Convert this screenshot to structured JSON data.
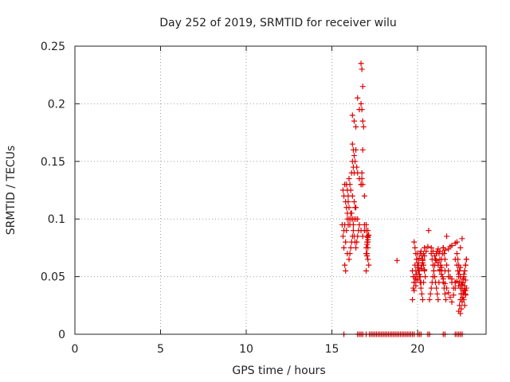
{
  "chart_data": {
    "type": "scatter",
    "title": "Day 252 of 2019, SRMTID for receiver wilu",
    "xlabel": "GPS time / hours",
    "ylabel": "SRMTID / TECUs",
    "xlim": [
      0,
      24
    ],
    "ylim": [
      0,
      0.25
    ],
    "xticks": [
      0,
      5,
      10,
      15,
      20
    ],
    "yticks": [
      0,
      0.05,
      0.1,
      0.15,
      0.2,
      0.25
    ],
    "ytick_labels": [
      "0",
      "0.05",
      "0.1",
      "0.15",
      "0.2",
      "0.25"
    ],
    "grid": true,
    "marker": "+",
    "color": "#e00000",
    "series": [
      {
        "x": [
          15.6,
          15.65,
          15.7,
          15.75,
          15.7,
          15.8,
          15.85,
          15.9,
          15.95,
          16.0,
          16.05,
          16.1,
          16.15,
          16.2,
          16.25,
          16.3,
          16.35,
          16.4,
          15.65,
          15.7,
          15.75,
          15.8,
          15.85,
          15.9,
          15.95,
          16.0,
          16.05,
          16.1,
          16.15,
          16.2,
          16.3,
          16.4,
          16.5,
          16.6,
          16.7,
          16.8,
          16.9,
          17.0,
          17.1,
          16.2,
          16.25,
          16.3,
          16.35,
          16.2,
          16.25,
          16.3,
          16.4,
          16.45,
          16.5,
          16.6,
          16.7,
          16.75,
          16.8,
          16.9,
          15.9,
          16.0,
          16.05,
          16.1,
          16.15,
          16.2,
          16.25,
          16.3,
          16.35,
          16.4,
          16.45,
          16.5,
          16.55,
          16.7,
          16.75,
          16.8,
          16.7,
          16.75,
          16.8,
          16.85,
          16.8,
          16.75,
          16.7,
          15.75,
          15.8,
          15.85,
          15.9,
          15.95,
          16.0,
          16.1,
          16.2,
          16.3,
          16.4,
          16.5,
          16.6,
          16.9,
          17.0,
          17.05,
          17.1,
          17.0,
          17.05,
          17.1,
          17.15,
          17.0,
          17.05,
          17.1,
          17.05,
          17.1,
          17.0,
          17.05,
          17.1,
          17.15,
          17.1,
          17.05,
          18.8,
          19.7,
          19.75,
          19.8,
          19.85,
          19.9,
          19.95,
          20.0,
          20.05,
          20.1,
          20.15,
          20.2,
          20.25,
          20.3,
          20.35,
          20.4,
          19.75,
          19.8,
          19.85,
          19.9,
          19.95,
          20.0,
          20.05,
          20.1,
          20.15,
          20.2,
          20.25,
          20.3,
          20.35,
          20.4,
          20.45,
          19.8,
          19.85,
          19.9,
          19.95,
          20.0,
          20.05,
          20.1,
          20.15,
          20.2,
          20.25,
          20.3,
          20.35,
          20.4,
          19.7,
          19.8,
          19.9,
          20.0,
          20.1,
          20.2,
          20.3,
          20.4,
          20.5,
          20.6,
          20.7,
          20.75,
          20.8,
          20.85,
          20.9,
          20.95,
          21.0,
          21.05,
          21.1,
          21.15,
          21.2,
          21.25,
          21.3,
          21.35,
          21.4,
          21.45,
          21.5,
          21.55,
          21.6,
          21.65,
          20.8,
          20.85,
          20.9,
          20.95,
          21.0,
          21.05,
          21.1,
          21.15,
          21.2,
          21.25,
          21.3,
          21.35,
          21.4,
          21.45,
          21.5,
          21.55,
          21.6,
          21.7,
          21.8,
          21.9,
          22.0,
          22.1,
          22.2,
          20.8,
          20.9,
          21.0,
          21.1,
          21.2,
          21.3,
          21.4,
          21.5,
          21.6,
          21.7,
          21.8,
          21.9,
          22.0,
          22.1,
          22.2,
          22.3,
          22.4,
          22.5,
          21.0,
          21.2,
          21.4,
          21.6,
          21.8,
          22.0,
          22.2,
          22.4,
          22.6,
          22.8,
          20.65,
          21.7,
          22.3,
          22.6,
          22.5,
          22.2,
          22.3,
          22.35,
          22.4,
          22.45,
          22.5,
          22.55,
          22.6,
          22.65,
          22.7,
          22.75,
          22.8,
          22.85,
          22.3,
          22.35,
          22.4,
          22.45,
          22.5,
          22.55,
          22.6,
          22.65,
          22.7,
          22.75,
          22.8,
          22.85,
          22.4,
          22.45,
          22.5,
          22.55,
          22.6,
          22.65,
          22.7,
          22.75,
          22.8,
          22.85,
          22.5,
          22.55,
          22.6,
          22.65,
          22.7,
          22.75,
          22.8,
          22.6,
          22.65,
          22.7,
          22.75,
          22.8,
          21.3,
          21.5,
          21.8,
          22.0,
          22.2,
          21.9,
          21.6,
          15.7,
          16.5,
          16.6,
          16.7,
          16.8,
          17.0,
          17.2,
          17.3,
          17.4,
          17.5,
          17.6,
          17.7,
          17.8,
          17.9,
          18.0,
          18.1,
          18.2,
          18.3,
          18.4,
          18.5,
          18.6,
          18.7,
          18.8,
          18.9,
          19.0,
          19.1,
          19.2,
          19.3,
          19.4,
          19.5,
          19.6,
          19.7,
          19.8,
          20.0,
          20.1,
          20.2,
          20.6,
          20.7,
          21.5,
          21.6,
          22.2,
          22.3,
          22.4,
          22.5,
          22.6
        ],
        "y": [
          0.095,
          0.085,
          0.09,
          0.095,
          0.075,
          0.08,
          0.09,
          0.1,
          0.095,
          0.1,
          0.095,
          0.1,
          0.105,
          0.1,
          0.095,
          0.1,
          0.11,
          0.1,
          0.125,
          0.12,
          0.13,
          0.115,
          0.13,
          0.125,
          0.12,
          0.135,
          0.13,
          0.125,
          0.14,
          0.12,
          0.115,
          0.11,
          0.1,
          0.095,
          0.09,
          0.085,
          0.09,
          0.095,
          0.085,
          0.15,
          0.145,
          0.14,
          0.15,
          0.165,
          0.16,
          0.155,
          0.16,
          0.145,
          0.14,
          0.135,
          0.13,
          0.14,
          0.13,
          0.12,
          0.07,
          0.065,
          0.07,
          0.075,
          0.08,
          0.085,
          0.09,
          0.085,
          0.08,
          0.075,
          0.08,
          0.085,
          0.09,
          0.235,
          0.23,
          0.215,
          0.2,
          0.195,
          0.185,
          0.18,
          0.16,
          0.135,
          0.13,
          0.06,
          0.055,
          0.11,
          0.105,
          0.115,
          0.11,
          0.105,
          0.19,
          0.185,
          0.18,
          0.205,
          0.195,
          0.095,
          0.09,
          0.085,
          0.08,
          0.075,
          0.07,
          0.065,
          0.06,
          0.055,
          0.085,
          0.09,
          0.08,
          0.075,
          0.07,
          0.068,
          0.082,
          0.086,
          0.084,
          0.078,
          0.064,
          0.055,
          0.05,
          0.045,
          0.06,
          0.055,
          0.065,
          0.07,
          0.06,
          0.055,
          0.05,
          0.045,
          0.06,
          0.065,
          0.07,
          0.075,
          0.04,
          0.045,
          0.05,
          0.048,
          0.052,
          0.058,
          0.062,
          0.066,
          0.07,
          0.072,
          0.068,
          0.064,
          0.06,
          0.056,
          0.05,
          0.08,
          0.075,
          0.07,
          0.065,
          0.06,
          0.055,
          0.05,
          0.045,
          0.04,
          0.035,
          0.03,
          0.045,
          0.055,
          0.03,
          0.038,
          0.042,
          0.047,
          0.052,
          0.057,
          0.062,
          0.068,
          0.072,
          0.076,
          0.03,
          0.035,
          0.04,
          0.045,
          0.05,
          0.055,
          0.06,
          0.065,
          0.07,
          0.072,
          0.074,
          0.07,
          0.065,
          0.06,
          0.055,
          0.05,
          0.045,
          0.04,
          0.035,
          0.03,
          0.07,
          0.065,
          0.06,
          0.055,
          0.05,
          0.045,
          0.04,
          0.035,
          0.03,
          0.045,
          0.055,
          0.06,
          0.065,
          0.07,
          0.075,
          0.07,
          0.065,
          0.06,
          0.055,
          0.05,
          0.045,
          0.04,
          0.045,
          0.075,
          0.072,
          0.068,
          0.064,
          0.06,
          0.056,
          0.052,
          0.048,
          0.044,
          0.04,
          0.036,
          0.032,
          0.028,
          0.034,
          0.04,
          0.046,
          0.052,
          0.058,
          0.06,
          0.062,
          0.058,
          0.055,
          0.05,
          0.048,
          0.045,
          0.042,
          0.04,
          0.038,
          0.09,
          0.085,
          0.08,
          0.083,
          0.075,
          0.065,
          0.06,
          0.055,
          0.05,
          0.045,
          0.04,
          0.035,
          0.03,
          0.045,
          0.05,
          0.055,
          0.06,
          0.065,
          0.07,
          0.065,
          0.06,
          0.055,
          0.05,
          0.045,
          0.04,
          0.035,
          0.03,
          0.025,
          0.035,
          0.04,
          0.02,
          0.025,
          0.03,
          0.035,
          0.04,
          0.045,
          0.05,
          0.055,
          0.06,
          0.065,
          0.018,
          0.022,
          0.028,
          0.032,
          0.038,
          0.042,
          0.047,
          0.043,
          0.048,
          0.052,
          0.038,
          0.034,
          0.072,
          0.075,
          0.074,
          0.077,
          0.079,
          0.076,
          0.073,
          0,
          0,
          0,
          0,
          0,
          0,
          0,
          0,
          0,
          0,
          0,
          0,
          0,
          0,
          0,
          0,
          0,
          0,
          0,
          0,
          0,
          0,
          0,
          0,
          0,
          0,
          0,
          0,
          0,
          0,
          0,
          0,
          0,
          0,
          0,
          0,
          0,
          0,
          0,
          0,
          0,
          0,
          0,
          0,
          0
        ]
      }
    ]
  }
}
